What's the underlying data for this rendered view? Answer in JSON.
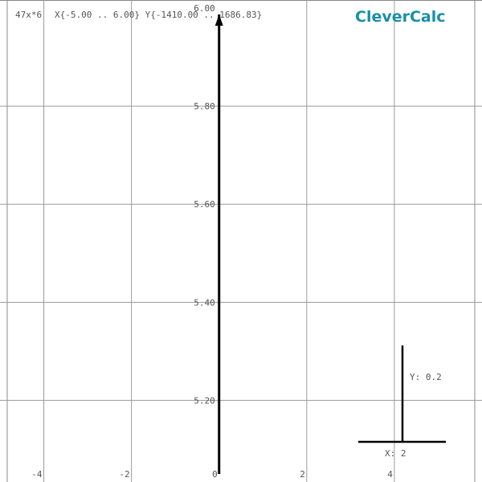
{
  "app": {
    "brand": "CleverCalc",
    "function_label": "47x*6",
    "range_label": "X{-5.00 .. 6.00} Y{-1410.00 .. 1686.83}",
    "brand_color": "#1a8fa6"
  },
  "chart_data": {
    "type": "line",
    "title": "",
    "xlim": [
      -5,
      6
    ],
    "ylim": [
      5.05,
      6.0
    ],
    "x_ticks": [
      -4,
      -2,
      0,
      2,
      4
    ],
    "x_tick_labels": [
      "-4",
      "-2",
      "0",
      "2",
      "4"
    ],
    "y_ticks": [
      5.2,
      5.4,
      5.6,
      5.8,
      6.0
    ],
    "y_tick_labels": [
      "5.20",
      "5.40",
      "5.60",
      "5.80",
      "6.00"
    ],
    "grid": true,
    "series": [
      {
        "x": [
          0.0,
          0.0
        ],
        "y": [
          5.05,
          6.0
        ]
      }
    ],
    "scale_indicator": {
      "x_label": "X: 2",
      "y_label": "Y: 0.2"
    }
  }
}
